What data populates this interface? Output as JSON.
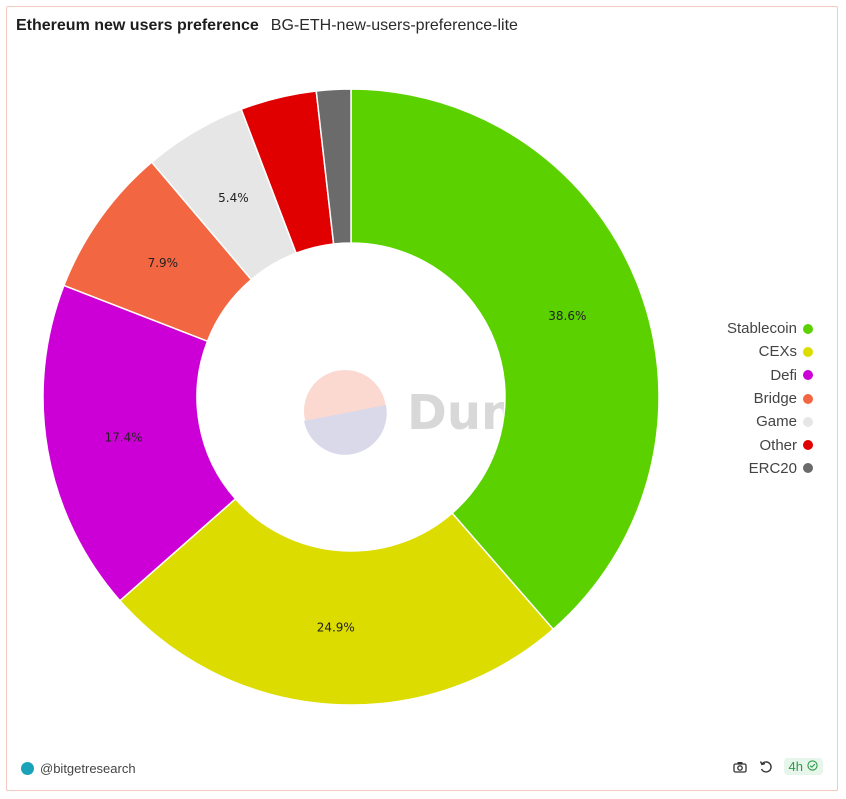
{
  "header": {
    "title": "Ethereum new users preference",
    "subtitle": "BG-ETH-new-users-preference-lite"
  },
  "watermark": {
    "text": "Dune"
  },
  "chart_data": {
    "type": "pie",
    "donut": true,
    "slices": [
      {
        "label": "Stablecoin",
        "value": 38.6,
        "display": "38.6%",
        "color": "#5bd200"
      },
      {
        "label": "CEXs",
        "value": 24.9,
        "display": "24.9%",
        "color": "#dcdc00"
      },
      {
        "label": "Defi",
        "value": 17.4,
        "display": "17.4%",
        "color": "#cc00d6"
      },
      {
        "label": "Bridge",
        "value": 7.9,
        "display": "7.9%",
        "color": "#f26641"
      },
      {
        "label": "Game",
        "value": 5.4,
        "display": "5.4%",
        "color": "#e6e6e6"
      },
      {
        "label": "Other",
        "value": 4.0,
        "display": "",
        "color": "#e00000"
      },
      {
        "label": "ERC20",
        "value": 1.8,
        "display": "",
        "color": "#6b6b6b"
      }
    ],
    "legend_position": "right"
  },
  "footer": {
    "handle": "@bitgetresearch",
    "age_badge": "4h",
    "icons": [
      "camera-icon",
      "refresh-icon",
      "check-circle-icon"
    ]
  }
}
